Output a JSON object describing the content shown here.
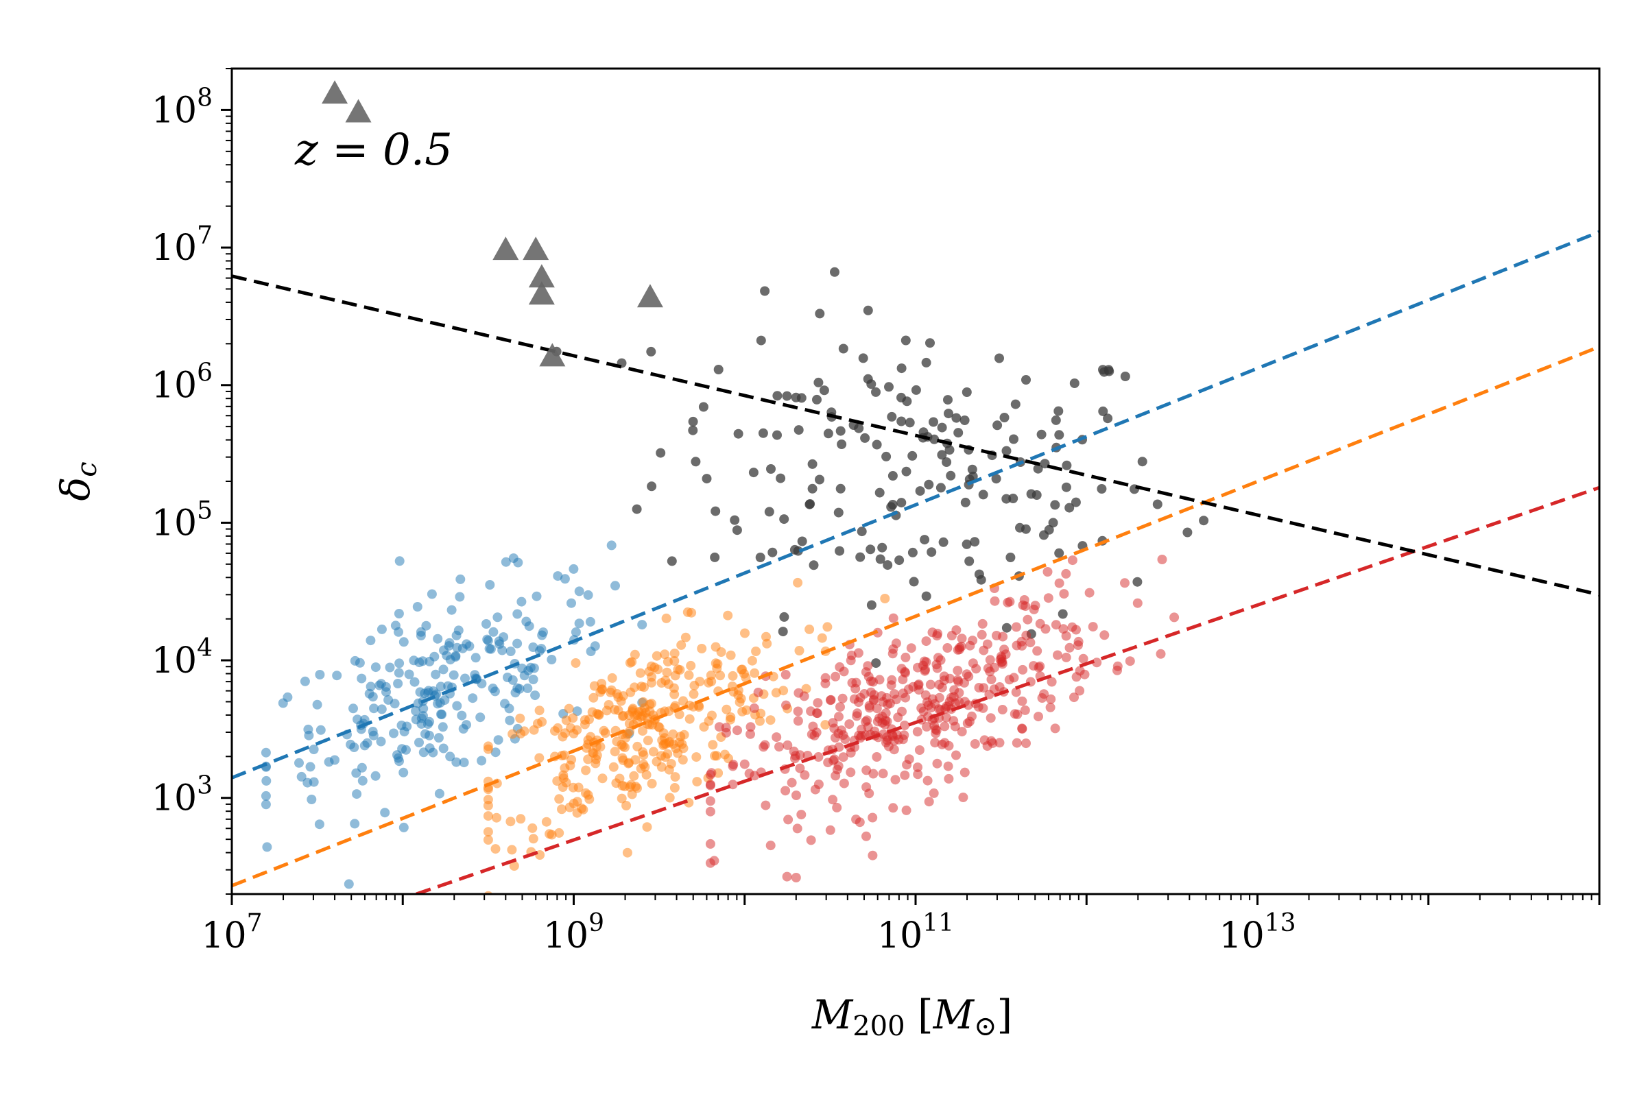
{
  "chart_data": {
    "type": "scatter",
    "title": "",
    "annotation": "z = 0.5",
    "xlabel": {
      "symbol": "M",
      "subscript": "200",
      "unit_open": " [",
      "unit_symbol": "M",
      "unit_subscript": "⊙",
      "unit_close": "]"
    },
    "ylabel": {
      "symbol": "δ",
      "subscript": "c"
    },
    "x_scale": "log",
    "y_scale": "log",
    "xlim": [
      10000000,
      1000000000000000
    ],
    "ylim": [
      200,
      200000000
    ],
    "x_ticks": [
      {
        "value": 10000000,
        "base": "10",
        "exp": "7"
      },
      {
        "value": 1000000000,
        "base": "10",
        "exp": "9"
      },
      {
        "value": 100000000000,
        "base": "10",
        "exp": "11"
      },
      {
        "value": 10000000000000,
        "base": "10",
        "exp": "13"
      }
    ],
    "y_ticks": [
      {
        "value": 1000,
        "base": "10",
        "exp": "3"
      },
      {
        "value": 10000,
        "base": "10",
        "exp": "4"
      },
      {
        "value": 100000,
        "base": "10",
        "exp": "5"
      },
      {
        "value": 1000000,
        "base": "10",
        "exp": "6"
      },
      {
        "value": 10000000,
        "base": "10",
        "exp": "7"
      },
      {
        "value": 100000000,
        "base": "10",
        "exp": "8"
      }
    ],
    "series": [
      {
        "name": "gray",
        "color": "#3a3a3a",
        "marker": "circle",
        "alpha": 0.75,
        "cloud": {
          "x_log_range": [
            8.9,
            14.7
          ],
          "center_log_x": 11.0,
          "center_log_y": 5.4,
          "sx": 0.75,
          "sy": 0.55,
          "n": 190
        }
      },
      {
        "name": "blue",
        "color": "#1f77b4",
        "marker": "circle",
        "alpha": 0.5,
        "cloud": {
          "x_log_range": [
            7.2,
            9.4
          ],
          "center_log_x": 8.2,
          "center_log_y": 3.75,
          "sx": 0.5,
          "sy": 0.33,
          "n": 240
        }
      },
      {
        "name": "orange",
        "color": "#ff7f0e",
        "marker": "circle",
        "alpha": 0.5,
        "cloud": {
          "x_log_range": [
            8.5,
            10.9
          ],
          "center_log_x": 9.4,
          "center_log_y": 3.5,
          "sx": 0.45,
          "sy": 0.3,
          "n": 330
        }
      },
      {
        "name": "red",
        "color": "#d62728",
        "marker": "circle",
        "alpha": 0.5,
        "cloud": {
          "x_log_range": [
            9.8,
            12.9
          ],
          "center_log_x": 11.0,
          "center_log_y": 3.65,
          "sx": 0.55,
          "sy": 0.3,
          "n": 420
        }
      },
      {
        "name": "triangles",
        "color": "#666666",
        "marker": "triangle",
        "alpha": 0.9,
        "x": [
          40000000,
          55000000,
          400000000,
          600000000,
          650000000,
          650000000,
          750000000,
          2800000000
        ],
        "y": [
          130000000,
          95000000,
          9500000,
          9500000,
          6000000,
          4500000,
          1600000,
          4300000
        ]
      }
    ],
    "fit_lines": [
      {
        "name": "blue-fit",
        "color": "#1f77b4",
        "x": [
          10000000,
          1000000000000000
        ],
        "y": [
          1400,
          13000000
        ]
      },
      {
        "name": "orange-fit",
        "color": "#ff7f0e",
        "x": [
          10000000,
          1000000000000000
        ],
        "y": [
          230,
          1900000
        ]
      },
      {
        "name": "red-fit",
        "color": "#d62728",
        "x": [
          120000000,
          1000000000000000
        ],
        "y": [
          200,
          180000
        ]
      },
      {
        "name": "black-fit",
        "color": "#000000",
        "x": [
          10000000,
          1000000000000000
        ],
        "y": [
          6200000,
          30000
        ]
      }
    ],
    "grid": false,
    "legend": "none"
  }
}
